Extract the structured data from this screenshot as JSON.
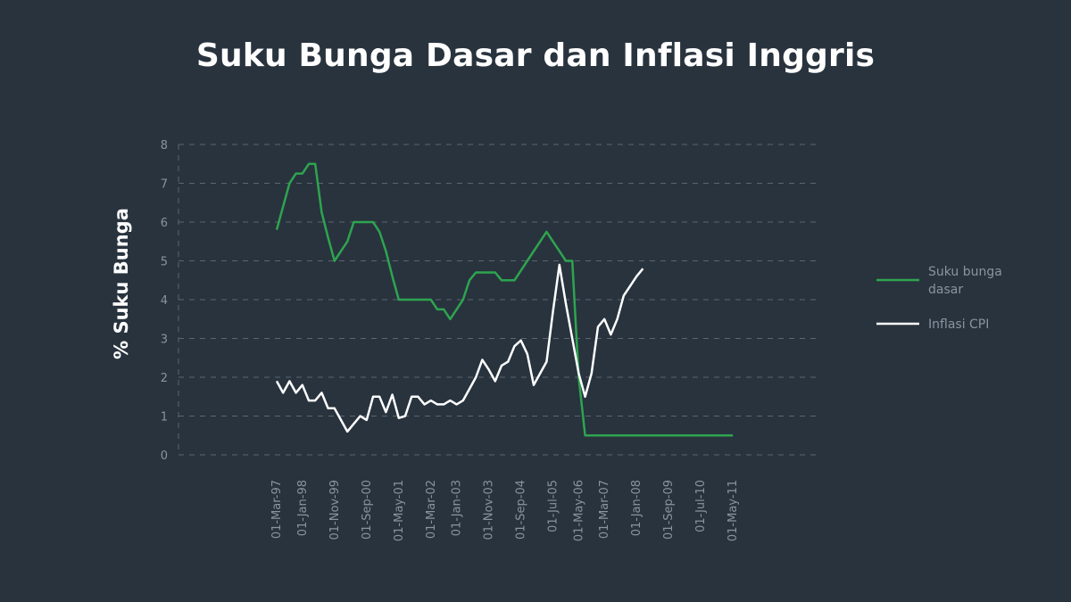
{
  "chart_data": {
    "type": "line",
    "title": "Suku Bunga Dasar dan Inflasi Inggris",
    "xlabel": "",
    "ylabel": "% Suku Bunga",
    "ylim": [
      0,
      8
    ],
    "yticks": [
      "0",
      "1",
      "2",
      "3",
      "4",
      "5",
      "6",
      "7",
      "8"
    ],
    "grid": true,
    "legend_position": "right",
    "x_tick_labels": [
      "01-Mar-97",
      "01-Jan-98",
      "01-Nov-99",
      "01-Sep-00",
      "01-May-01",
      "01-Mar-02",
      "01-Jan-03",
      "01-Nov-03",
      "01-Sep-04",
      "01-Jul-05",
      "01-May-06",
      "01-Mar-07",
      "01-Jan-08",
      "01-Sep-09",
      "01-Jul-10",
      "01-May-11"
    ],
    "x_tick_index": [
      0,
      4,
      9,
      14,
      19,
      24,
      28,
      33,
      38,
      43,
      47,
      51,
      56,
      61,
      66,
      71
    ],
    "series": [
      {
        "name": "Suku bunga dasar",
        "color": "#2ea44f",
        "values": [
          5.8,
          6.4,
          7.0,
          7.25,
          7.25,
          7.5,
          7.5,
          6.25,
          5.6,
          5.0,
          5.25,
          5.5,
          6.0,
          6.0,
          6.0,
          6.0,
          5.75,
          5.25,
          4.6,
          4.0,
          4.0,
          4.0,
          4.0,
          4.0,
          4.0,
          3.75,
          3.75,
          3.5,
          3.75,
          4.0,
          4.5,
          4.7,
          4.7,
          4.7,
          4.7,
          4.5,
          4.5,
          4.5,
          4.75,
          5.0,
          5.25,
          5.5,
          5.75,
          5.5,
          5.25,
          5.0,
          5.0,
          2.0,
          0.5,
          0.5,
          0.5,
          0.5,
          0.5,
          0.5,
          0.5,
          0.5,
          0.5,
          0.5,
          0.5,
          0.5,
          0.5,
          0.5,
          0.5,
          0.5,
          0.5,
          0.5,
          0.5,
          0.5,
          0.5,
          0.5,
          0.5,
          0.5
        ]
      },
      {
        "name": "Inflasi CPI",
        "color": "#ffffff",
        "values": [
          1.9,
          1.6,
          1.9,
          1.6,
          1.8,
          1.4,
          1.4,
          1.6,
          1.2,
          1.2,
          0.9,
          0.6,
          0.8,
          1.0,
          0.9,
          1.5,
          1.5,
          1.1,
          1.55,
          0.95,
          1.0,
          1.5,
          1.5,
          1.3,
          1.4,
          1.3,
          1.3,
          1.4,
          1.3,
          1.4,
          1.7,
          2.0,
          2.45,
          2.2,
          1.9,
          2.3,
          2.4,
          2.8,
          2.95,
          2.6,
          1.8,
          2.1,
          2.4,
          3.7,
          4.9,
          3.9,
          3.0,
          2.1,
          1.5,
          2.1,
          3.3,
          3.5,
          3.1,
          3.5,
          4.1,
          4.35,
          4.6,
          4.8
        ]
      }
    ]
  }
}
